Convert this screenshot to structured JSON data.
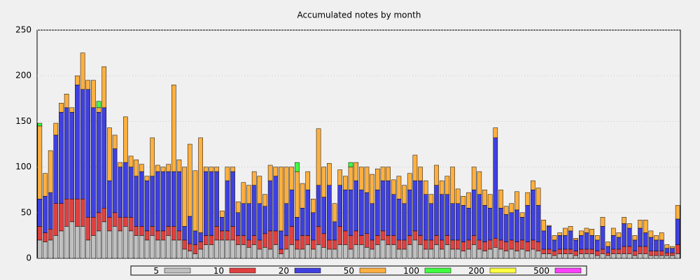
{
  "chart_data": {
    "type": "stacked_bar",
    "title": "Accumulated notes by month",
    "ylim": [
      0,
      250
    ],
    "yticks": [
      0,
      50,
      100,
      150,
      200,
      250
    ],
    "grid": true,
    "series": [
      {
        "name": "5",
        "color": "#c0c0c0",
        "values": [
          20,
          18,
          20,
          25,
          30,
          35,
          40,
          35,
          35,
          20,
          25,
          30,
          40,
          30,
          35,
          30,
          35,
          30,
          25,
          25,
          20,
          25,
          20,
          20,
          25,
          20,
          20,
          10,
          8,
          5,
          10,
          15,
          15,
          20,
          20,
          20,
          20,
          15,
          15,
          12,
          15,
          10,
          12,
          10,
          15,
          5,
          10,
          15,
          10,
          10,
          15,
          10,
          15,
          12,
          10,
          10,
          15,
          15,
          10,
          15,
          15,
          12,
          10,
          15,
          20,
          15,
          15,
          10,
          10,
          15,
          20,
          15,
          10,
          10,
          15,
          10,
          15,
          10,
          10,
          8,
          10,
          15,
          10,
          8,
          10,
          12,
          10,
          8,
          10,
          8,
          10,
          8,
          10,
          8,
          5,
          5,
          3,
          5,
          5,
          5,
          3,
          5,
          5,
          5,
          3,
          5,
          3,
          5,
          5,
          5,
          5,
          3,
          5,
          5,
          3,
          3,
          3,
          3,
          3,
          5
        ]
      },
      {
        "name": "10",
        "color": "#e04040",
        "values": [
          15,
          10,
          12,
          35,
          30,
          30,
          25,
          30,
          30,
          25,
          20,
          20,
          15,
          15,
          15,
          15,
          10,
          15,
          10,
          10,
          10,
          10,
          10,
          10,
          10,
          15,
          10,
          10,
          8,
          10,
          8,
          10,
          10,
          15,
          10,
          10,
          15,
          10,
          10,
          8,
          10,
          10,
          15,
          20,
          15,
          5,
          15,
          20,
          10,
          15,
          10,
          10,
          20,
          15,
          10,
          10,
          20,
          15,
          15,
          15,
          10,
          15,
          10,
          10,
          10,
          10,
          10,
          10,
          10,
          10,
          10,
          10,
          10,
          10,
          10,
          10,
          10,
          10,
          10,
          10,
          10,
          10,
          10,
          10,
          10,
          10,
          10,
          10,
          10,
          10,
          10,
          10,
          10,
          10,
          5,
          5,
          5,
          5,
          5,
          5,
          5,
          5,
          5,
          5,
          5,
          5,
          3,
          5,
          5,
          8,
          8,
          5,
          8,
          8,
          5,
          5,
          5,
          3,
          3,
          10
        ]
      },
      {
        "name": "20",
        "color": "#4040e0",
        "values": [
          30,
          40,
          40,
          75,
          100,
          100,
          95,
          125,
          120,
          140,
          120,
          110,
          110,
          40,
          70,
          55,
          60,
          55,
          55,
          60,
          55,
          55,
          65,
          65,
          60,
          60,
          65,
          15,
          30,
          15,
          10,
          70,
          70,
          60,
          15,
          55,
          60,
          25,
          35,
          40,
          55,
          40,
          30,
          55,
          60,
          20,
          35,
          40,
          25,
          30,
          50,
          30,
          45,
          40,
          60,
          20,
          45,
          45,
          50,
          55,
          50,
          45,
          40,
          50,
          55,
          60,
          45,
          45,
          40,
          50,
          55,
          60,
          50,
          40,
          55,
          50,
          45,
          40,
          40,
          40,
          35,
          50,
          50,
          40,
          35,
          110,
          35,
          30,
          30,
          35,
          25,
          40,
          55,
          40,
          20,
          25,
          12,
          15,
          15,
          20,
          12,
          15,
          18,
          15,
          12,
          25,
          7,
          15,
          13,
          25,
          20,
          12,
          20,
          15,
          15,
          12,
          12,
          5,
          5,
          28
        ]
      },
      {
        "name": "50",
        "color": "#ffb040",
        "values": [
          80,
          25,
          46,
          13,
          10,
          15,
          5,
          10,
          40,
          10,
          30,
          5,
          45,
          58,
          15,
          5,
          50,
          12,
          18,
          8,
          5,
          42,
          7,
          5,
          8,
          95,
          13,
          65,
          79,
          66,
          104,
          5,
          5,
          5,
          7,
          15,
          5,
          12,
          23,
          20,
          15,
          30,
          13,
          17,
          10,
          70,
          40,
          25,
          50,
          27,
          20,
          15,
          62,
          33,
          24,
          20,
          17,
          15,
          25,
          20,
          25,
          28,
          32,
          23,
          15,
          15,
          16,
          25,
          20,
          18,
          28,
          15,
          15,
          10,
          22,
          15,
          20,
          40,
          16,
          10,
          17,
          25,
          25,
          17,
          15,
          11,
          20,
          9,
          10,
          20,
          5,
          14,
          10,
          19,
          12,
          1,
          5,
          3,
          8,
          5,
          2,
          5,
          5,
          7,
          5,
          10,
          5,
          8,
          5,
          7,
          5,
          5,
          9,
          14,
          7,
          5,
          8,
          4,
          2,
          15
        ]
      },
      {
        "name": "100",
        "color": "#40ff40",
        "values": [
          3,
          0,
          0,
          0,
          0,
          0,
          0,
          0,
          0,
          0,
          0,
          7,
          0,
          0,
          0,
          0,
          0,
          0,
          0,
          0,
          0,
          0,
          0,
          0,
          0,
          0,
          0,
          0,
          0,
          0,
          0,
          0,
          0,
          0,
          0,
          0,
          0,
          0,
          0,
          0,
          0,
          0,
          0,
          0,
          0,
          0,
          0,
          0,
          10,
          0,
          0,
          0,
          0,
          0,
          0,
          0,
          0,
          0,
          5,
          0,
          0,
          0,
          0,
          0,
          0,
          0,
          0,
          0,
          0,
          0,
          0,
          0,
          0,
          0,
          0,
          0,
          0,
          0,
          0,
          0,
          0,
          0,
          0,
          0,
          0,
          0,
          0,
          0,
          0,
          0,
          0,
          0,
          0,
          0,
          0,
          0,
          0,
          0,
          0,
          0,
          0,
          0,
          0,
          0,
          0,
          0,
          0,
          0,
          0,
          0,
          0,
          0,
          0,
          0,
          0,
          0,
          0,
          0,
          0,
          0
        ]
      },
      {
        "name": "200",
        "color": "#ffff40",
        "values": [
          0,
          0,
          0,
          0,
          0,
          0,
          0,
          0,
          0,
          0,
          0,
          0,
          0,
          0,
          0,
          0,
          0,
          0,
          0,
          0,
          0,
          0,
          0,
          0,
          0,
          0,
          0,
          0,
          0,
          0,
          0,
          0,
          0,
          0,
          0,
          0,
          0,
          0,
          0,
          0,
          0,
          0,
          0,
          0,
          0,
          0,
          0,
          0,
          0,
          0,
          0,
          0,
          0,
          0,
          0,
          0,
          0,
          0,
          0,
          0,
          0,
          0,
          0,
          0,
          0,
          0,
          0,
          0,
          0,
          0,
          0,
          0,
          0,
          0,
          0,
          0,
          0,
          0,
          0,
          0,
          0,
          0,
          0,
          0,
          0,
          0,
          0,
          0,
          0,
          0,
          0,
          0,
          0,
          0,
          0,
          0,
          0,
          0,
          0,
          0,
          0,
          0,
          0,
          0,
          0,
          0,
          0,
          0,
          0,
          0,
          0,
          0,
          0,
          0,
          0,
          0,
          0,
          0,
          0,
          0
        ]
      },
      {
        "name": "500",
        "color": "#ff40ff",
        "values": [
          0,
          0,
          0,
          0,
          0,
          0,
          0,
          0,
          0,
          0,
          0,
          0,
          0,
          0,
          0,
          0,
          0,
          0,
          0,
          0,
          0,
          0,
          0,
          0,
          0,
          0,
          0,
          0,
          0,
          0,
          0,
          0,
          0,
          0,
          0,
          0,
          0,
          0,
          0,
          0,
          0,
          0,
          0,
          0,
          0,
          0,
          0,
          0,
          0,
          0,
          0,
          0,
          0,
          0,
          0,
          0,
          0,
          0,
          0,
          0,
          0,
          0,
          0,
          0,
          0,
          0,
          0,
          0,
          0,
          0,
          0,
          0,
          0,
          0,
          0,
          0,
          0,
          0,
          0,
          0,
          0,
          0,
          0,
          0,
          0,
          0,
          0,
          0,
          0,
          0,
          0,
          0,
          0,
          0,
          0,
          0,
          0,
          0,
          0,
          0,
          0,
          0,
          0,
          0,
          0,
          0,
          0,
          0,
          0,
          0,
          0,
          0,
          0,
          0,
          0,
          0,
          0,
          0,
          0,
          0
        ]
      }
    ]
  }
}
